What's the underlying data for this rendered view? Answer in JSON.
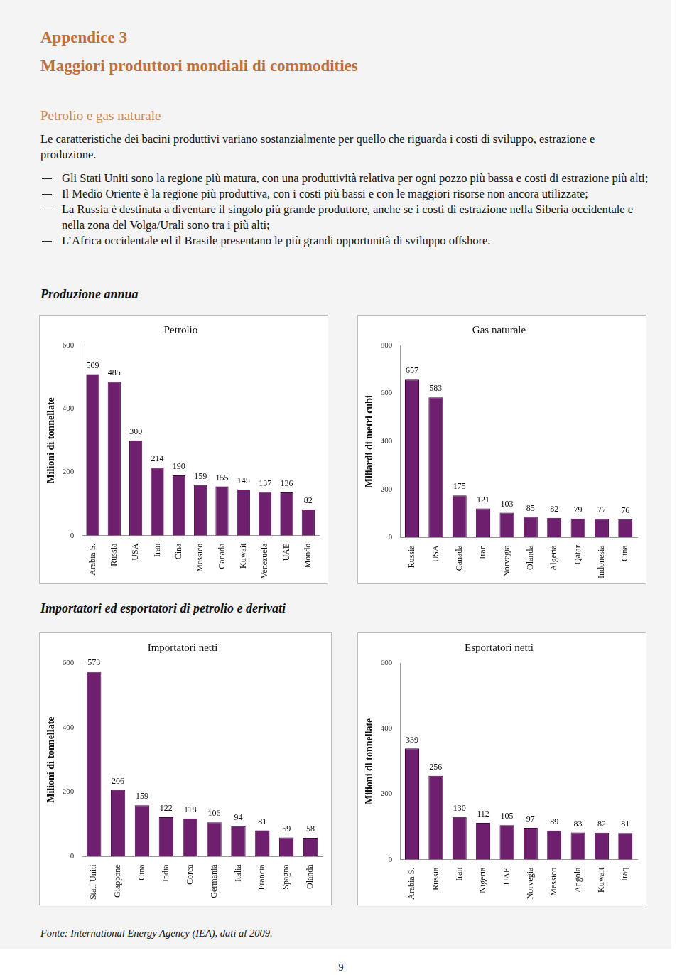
{
  "document": {
    "heading": "Appendice 3",
    "title": "Maggiori produttori mondiali di commodities",
    "section": "Petrolio e gas naturale",
    "intro": "Le caratteristiche dei bacini produttivi variano sostanzialmente per quello che riguarda i costi di sviluppo, estrazione e produzione.",
    "bullets": [
      "Gli Stati Uniti sono la regione più matura, con una produttività relativa per ogni pozzo più bassa e costi di estrazione più alti;",
      "Il Medio Oriente è la regione più produttiva, con i costi più bassi e con le maggiori risorse non ancora utilizzate;",
      "La Russia è destinata a diventare il singolo più grande produttore, anche se i costi di estrazione nella Siberia occidentale e nella zona del Volga/Urali sono tra i più alti;",
      "L’Africa occidentale ed il Brasile presentano le più grandi opportunità di sviluppo offshore."
    ],
    "production_heading": "Produzione annua",
    "trade_heading": "Importatori ed esportatori di petrolio e derivati",
    "source": "Fonte: International Energy Agency (IEA), dati al 2009.",
    "page_number": "9"
  },
  "chart_data": [
    {
      "type": "bar",
      "title": "Petrolio",
      "y_label": "Milioni di tonnellate",
      "categories": [
        "Arabia S.",
        "Russia",
        "USA",
        "Iran",
        "Cina",
        "Messico",
        "Canada",
        "Kuwait",
        "Venezuela",
        "UAE",
        "Mondo"
      ],
      "values": [
        509,
        485,
        300,
        214,
        190,
        159,
        155,
        145,
        137,
        136,
        82
      ],
      "color": "#6e1f6e",
      "ylim": [
        0,
        600
      ],
      "yticks": [
        0,
        200,
        400,
        600
      ],
      "grid": false,
      "data_labels": true
    },
    {
      "type": "bar",
      "title": "Gas naturale",
      "y_label": "Miliardi di metri cubi",
      "categories": [
        "Russia",
        "USA",
        "Canada",
        "Iran",
        "Norvegia",
        "Olanda",
        "Algeria",
        "Qatar",
        "Indonesia",
        "Cina"
      ],
      "values": [
        657,
        583,
        175,
        121,
        103,
        85,
        82,
        79,
        77,
        76
      ],
      "color": "#6e1f6e",
      "ylim": [
        0,
        800
      ],
      "yticks": [
        0,
        200,
        400,
        600,
        800
      ],
      "grid": false,
      "data_labels": true
    },
    {
      "type": "bar",
      "title": "Importatori netti",
      "y_label": "Milioni di tonnellate",
      "categories": [
        "Stati Uniti",
        "Giappone",
        "Cina",
        "India",
        "Corea",
        "Germania",
        "Italia",
        "Francia",
        "Spagna",
        "Olanda"
      ],
      "values": [
        573,
        206,
        159,
        122,
        118,
        106,
        94,
        81,
        59,
        58
      ],
      "color": "#6e1f6e",
      "ylim": [
        0,
        600
      ],
      "yticks": [
        0,
        200,
        400,
        600
      ],
      "grid": false,
      "data_labels": true
    },
    {
      "type": "bar",
      "title": "Esportatori netti",
      "y_label": "Milioni di tonnellate",
      "categories": [
        "Arabia S.",
        "Russia",
        "Iran",
        "Nigeria",
        "UAE",
        "Norvegia",
        "Messico",
        "Angola",
        "Kuwait",
        "Iraq"
      ],
      "values": [
        339,
        256,
        130,
        112,
        105,
        97,
        89,
        83,
        82,
        81
      ],
      "color": "#6e1f6e",
      "ylim": [
        0,
        600
      ],
      "yticks": [
        0,
        200,
        400,
        600
      ],
      "grid": false,
      "data_labels": true
    }
  ]
}
